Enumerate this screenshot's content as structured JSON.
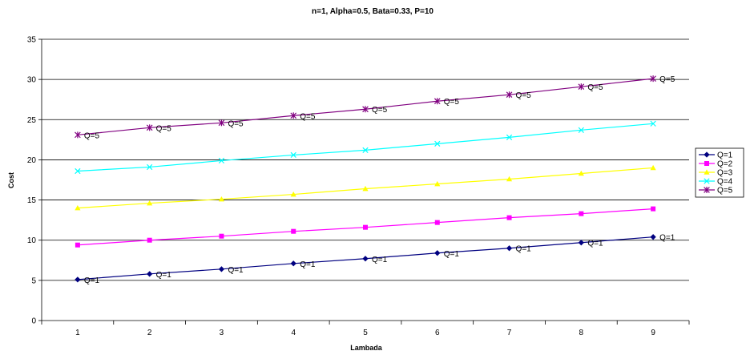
{
  "chart_data": {
    "type": "line",
    "title": "n=1, Alpha=0.5, Bata=0.33, P=10",
    "xlabel": "Lambada",
    "ylabel": "Cost",
    "x": [
      1,
      2,
      3,
      4,
      5,
      6,
      7,
      8,
      9
    ],
    "ylim": [
      0,
      35
    ],
    "yticks": [
      0,
      5,
      10,
      15,
      20,
      25,
      30,
      35
    ],
    "grid": true,
    "legend_position": "right",
    "series": [
      {
        "name": "Q=1",
        "color": "#000080",
        "marker": "diamond",
        "values": [
          5.1,
          5.8,
          6.4,
          7.1,
          7.7,
          8.4,
          9.0,
          9.7,
          10.4
        ],
        "data_label": "Q=1"
      },
      {
        "name": "Q=2",
        "color": "#ff00ff",
        "marker": "square",
        "values": [
          9.4,
          10.0,
          10.5,
          11.1,
          11.6,
          12.2,
          12.8,
          13.3,
          13.9
        ]
      },
      {
        "name": "Q=3",
        "color": "#ffff00",
        "marker": "triangle",
        "values": [
          14.0,
          14.6,
          15.1,
          15.7,
          16.4,
          17.0,
          17.6,
          18.3,
          19.0
        ]
      },
      {
        "name": "Q=4",
        "color": "#00ffff",
        "marker": "x",
        "values": [
          18.6,
          19.1,
          19.9,
          20.6,
          21.2,
          22.0,
          22.8,
          23.7,
          24.5
        ]
      },
      {
        "name": "Q=5",
        "color": "#800080",
        "marker": "star",
        "values": [
          23.1,
          24.0,
          24.6,
          25.5,
          26.3,
          27.3,
          28.1,
          29.1,
          30.1
        ],
        "data_label": "Q=5"
      }
    ]
  }
}
